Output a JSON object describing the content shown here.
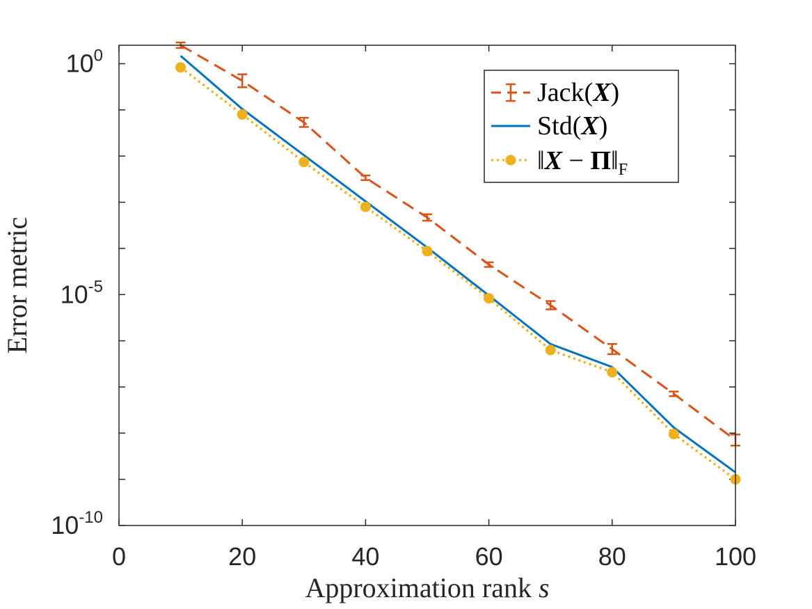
{
  "chart_data": {
    "type": "line",
    "title": "",
    "xlabel": "Approximation rank",
    "xlabel_var": "s",
    "ylabel": "Error metric",
    "xlim": [
      0,
      100
    ],
    "ylim_log10": [
      -10,
      0.4
    ],
    "yscale": "log",
    "x_ticks": [
      0,
      20,
      40,
      60,
      80,
      100
    ],
    "x_tick_labels": [
      "0",
      "20",
      "40",
      "60",
      "80",
      "100"
    ],
    "y_ticks_log10": [
      0,
      -5,
      -10
    ],
    "y_tick_labels": [
      {
        "base": "10",
        "exp": "0"
      },
      {
        "base": "10",
        "exp": "-5"
      },
      {
        "base": "10",
        "exp": "-10"
      }
    ],
    "x": [
      10,
      20,
      30,
      40,
      50,
      60,
      70,
      80,
      90,
      100
    ],
    "series": [
      {
        "name": "Jack",
        "label_prefix": "Jack(",
        "label_var": "X",
        "label_suffix": ")",
        "color": "#D95319",
        "style": "dashed",
        "errorbars": true,
        "log10_values": [
          0.4,
          -0.37,
          -1.27,
          -2.47,
          -3.33,
          -4.35,
          -5.23,
          -6.18,
          -7.15,
          -8.15
        ],
        "log10_err": [
          0.06,
          0.14,
          0.1,
          0.05,
          0.07,
          0.05,
          0.09,
          0.11,
          0.05,
          0.12
        ]
      },
      {
        "name": "Std",
        "label_prefix": "Std(",
        "label_var": "X",
        "label_suffix": ")",
        "color": "#0072BD",
        "style": "solid",
        "log10_values": [
          0.17,
          -0.98,
          -1.98,
          -2.98,
          -3.98,
          -5.02,
          -6.07,
          -6.57,
          -7.88,
          -8.85
        ]
      },
      {
        "name": "norm",
        "label_prefix": "‖",
        "label_var": "X",
        "label_mid": " − ",
        "label_var2": "Π",
        "label_suffix": "‖",
        "label_sub": "F",
        "color": "#EDB120",
        "style": "dotted",
        "markers": true,
        "log10_values": [
          -0.08,
          -1.1,
          -2.13,
          -3.1,
          -4.06,
          -5.08,
          -6.2,
          -6.68,
          -8.02,
          -9.0
        ]
      }
    ],
    "legend_position": "top-right"
  }
}
